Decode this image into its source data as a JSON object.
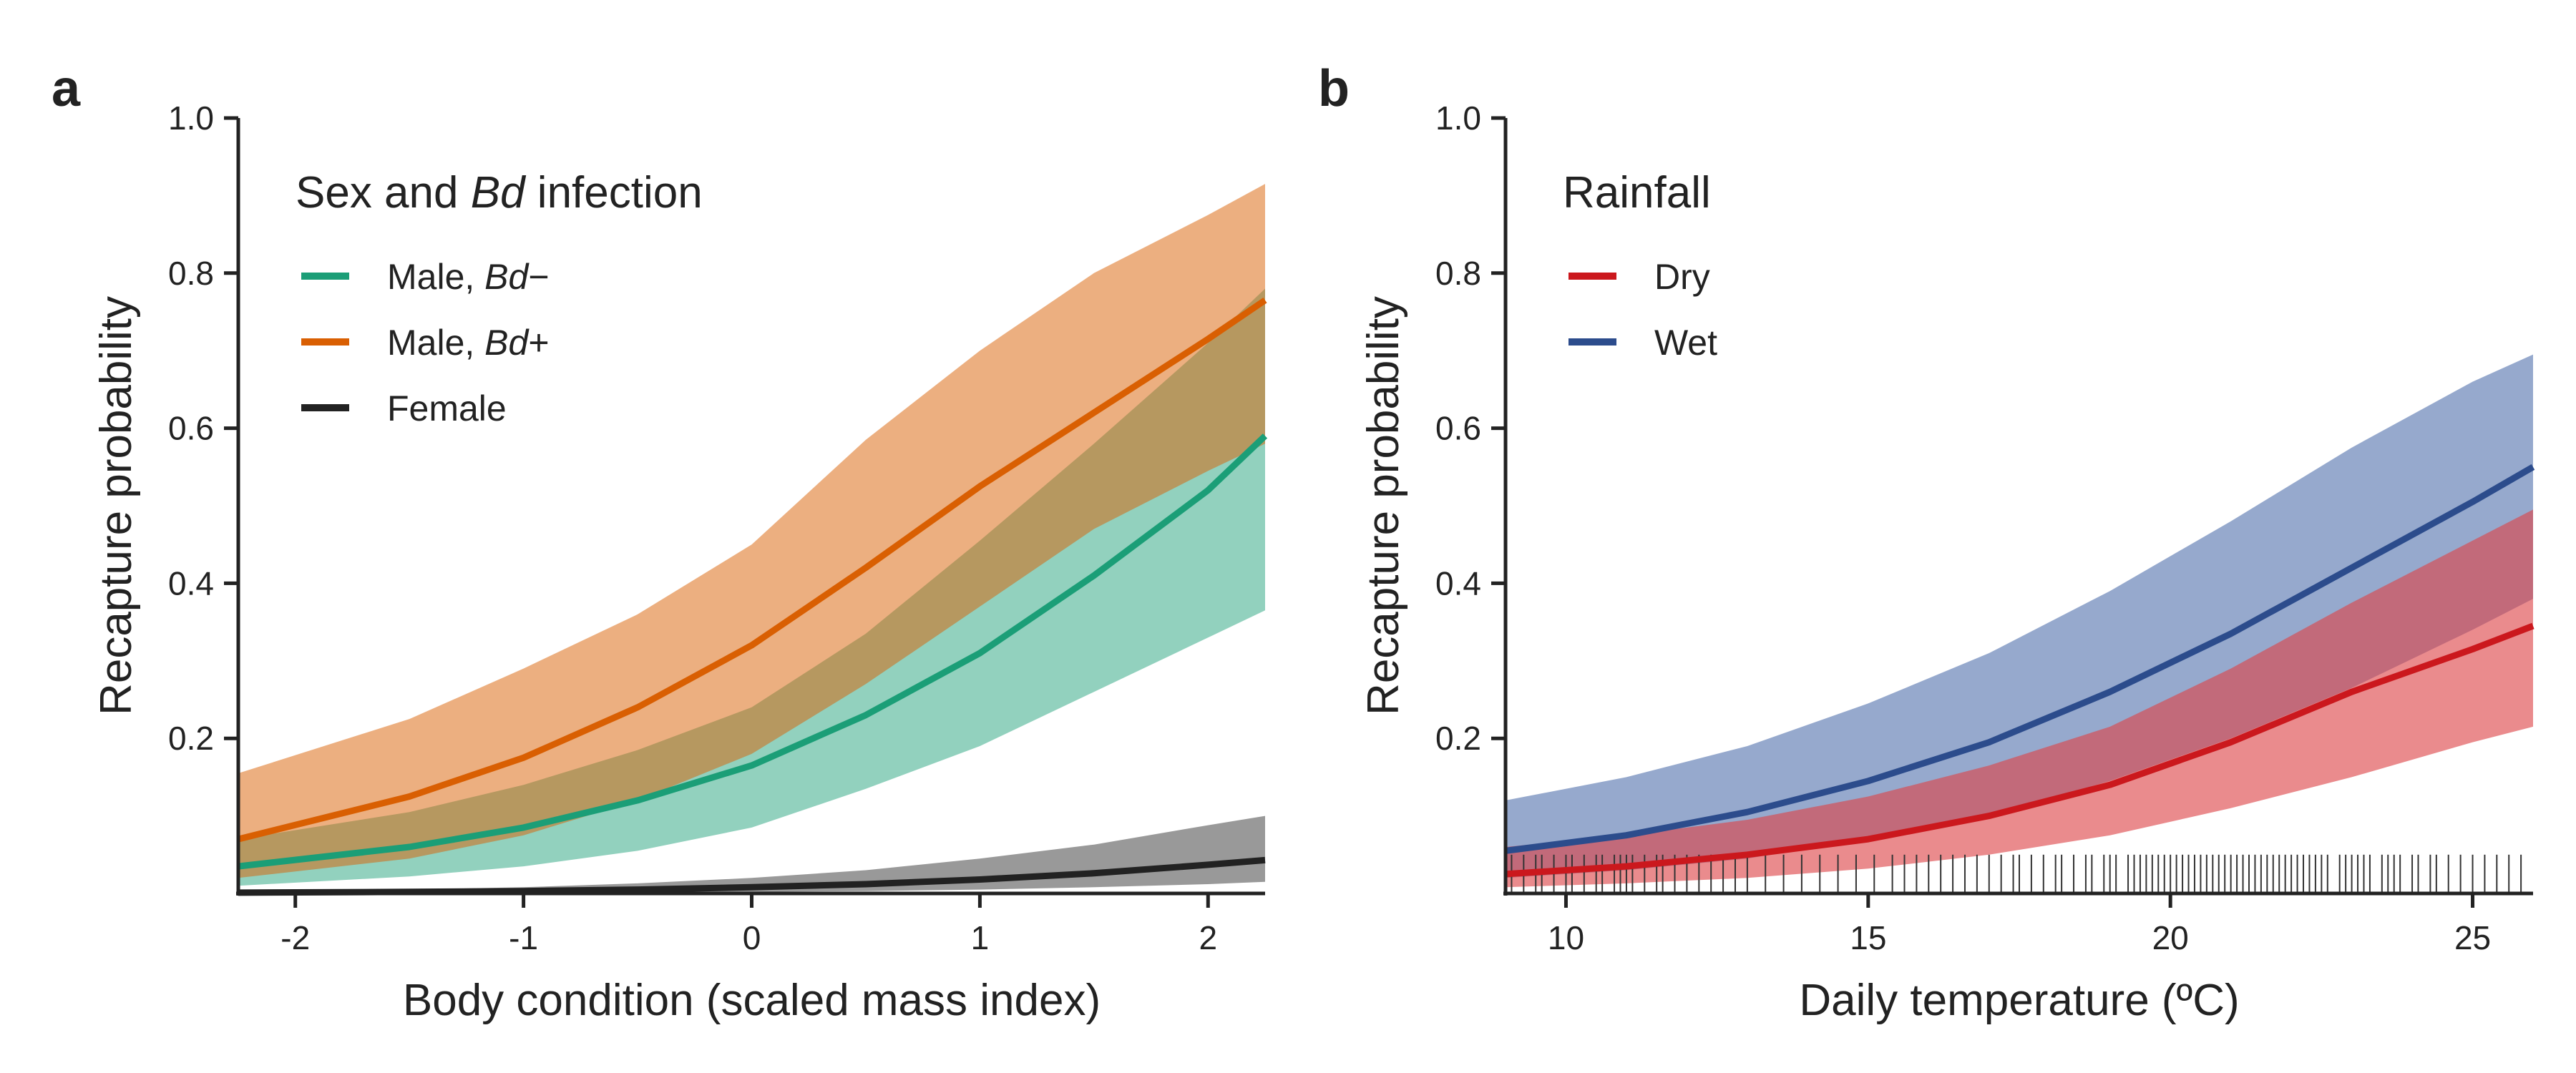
{
  "figure": {
    "panels": [
      {
        "letter": "a"
      },
      {
        "letter": "b"
      }
    ]
  },
  "chart_data": [
    {
      "type": "line",
      "panel": "a",
      "xlabel": "Body condition (scaled mass index)",
      "ylabel": "Recapture probability",
      "xlim": [
        -2.25,
        2.25
      ],
      "ylim": [
        0,
        1.0
      ],
      "xticks": [
        -2,
        -1,
        0,
        1,
        2
      ],
      "xtick_labels": [
        "-2",
        "-1",
        "0",
        "1",
        "2"
      ],
      "yticks": [
        0.2,
        0.4,
        0.6,
        0.8,
        1.0
      ],
      "ytick_labels": [
        "0.2",
        "0.4",
        "0.6",
        "0.8",
        "1.0"
      ],
      "grid": false,
      "legend": {
        "position": "top-left",
        "title_parts": [
          {
            "text": "Sex and ",
            "italic": false
          },
          {
            "text": "Bd",
            "italic": true
          },
          {
            "text": " infection",
            "italic": false
          }
        ],
        "entries": [
          {
            "parts": [
              {
                "text": "Male, ",
                "italic": false
              },
              {
                "text": "Bd",
                "italic": true
              },
              {
                "text": "−",
                "italic": false
              }
            ],
            "color": "#1b9e77"
          },
          {
            "parts": [
              {
                "text": "Male, ",
                "italic": false
              },
              {
                "text": "Bd",
                "italic": true
              },
              {
                "text": "+",
                "italic": false
              }
            ],
            "color": "#d95f02"
          },
          {
            "parts": [
              {
                "text": "Female",
                "italic": false
              }
            ],
            "color": "#222222"
          }
        ]
      },
      "series": [
        {
          "color": "#1b9e77",
          "band_color": "#1b9e77",
          "band_opacity": 0.48,
          "x": [
            -2.25,
            -1.5,
            -1.0,
            -0.5,
            0.0,
            0.5,
            1.0,
            1.5,
            2.0,
            2.25
          ],
          "y": [
            0.035,
            0.06,
            0.085,
            0.12,
            0.165,
            0.23,
            0.31,
            0.41,
            0.52,
            0.59
          ],
          "lower": [
            0.01,
            0.022,
            0.035,
            0.055,
            0.085,
            0.135,
            0.19,
            0.26,
            0.33,
            0.365
          ],
          "upper": [
            0.07,
            0.105,
            0.14,
            0.185,
            0.24,
            0.335,
            0.455,
            0.58,
            0.71,
            0.78
          ]
        },
        {
          "color": "#d95f02",
          "band_color": "#d95f02",
          "band_opacity": 0.5,
          "x": [
            -2.25,
            -1.5,
            -1.0,
            -0.5,
            0.0,
            0.5,
            1.0,
            1.5,
            2.0,
            2.25
          ],
          "y": [
            0.07,
            0.125,
            0.175,
            0.24,
            0.32,
            0.42,
            0.525,
            0.62,
            0.715,
            0.765
          ],
          "lower": [
            0.02,
            0.045,
            0.075,
            0.12,
            0.18,
            0.27,
            0.37,
            0.47,
            0.545,
            0.58
          ],
          "upper": [
            0.155,
            0.225,
            0.29,
            0.36,
            0.45,
            0.585,
            0.7,
            0.8,
            0.875,
            0.915
          ]
        },
        {
          "color": "#222222",
          "band_color": "#555555",
          "band_opacity": 0.6,
          "x": [
            -2.25,
            -1.5,
            -1.0,
            -0.5,
            0.0,
            0.5,
            1.0,
            1.5,
            2.0,
            2.25
          ],
          "y": [
            0.001,
            0.002,
            0.003,
            0.005,
            0.008,
            0.012,
            0.018,
            0.026,
            0.037,
            0.043
          ],
          "lower": [
            0.0,
            0.0,
            0.0005,
            0.001,
            0.002,
            0.003,
            0.005,
            0.008,
            0.012,
            0.015
          ],
          "upper": [
            0.003,
            0.005,
            0.008,
            0.013,
            0.02,
            0.03,
            0.045,
            0.063,
            0.088,
            0.1
          ]
        }
      ]
    },
    {
      "type": "line",
      "panel": "b",
      "xlabel": "Daily temperature (ºC)",
      "ylabel": "Recapture probability",
      "xlim": [
        9,
        26
      ],
      "ylim": [
        0,
        1.0
      ],
      "xticks": [
        10,
        15,
        20,
        25
      ],
      "xtick_labels": [
        "10",
        "15",
        "20",
        "25"
      ],
      "yticks": [
        0.2,
        0.4,
        0.6,
        0.8,
        1.0
      ],
      "ytick_labels": [
        "0.2",
        "0.4",
        "0.6",
        "0.8",
        "1.0"
      ],
      "grid": false,
      "legend": {
        "position": "top-left",
        "title_parts": [
          {
            "text": "Rainfall",
            "italic": false
          }
        ],
        "entries": [
          {
            "parts": [
              {
                "text": "Dry",
                "italic": false
              }
            ],
            "color": "#cb181d"
          },
          {
            "parts": [
              {
                "text": "Wet",
                "italic": false
              }
            ],
            "color": "#2c4c8c"
          }
        ]
      },
      "series": [
        {
          "color": "#2c4c8c",
          "band_color": "#4a6aa8",
          "band_opacity": 0.58,
          "x": [
            9,
            11,
            13,
            15,
            17,
            19,
            21,
            23,
            25,
            26
          ],
          "y": [
            0.055,
            0.075,
            0.105,
            0.145,
            0.195,
            0.26,
            0.335,
            0.42,
            0.505,
            0.55
          ],
          "lower": [
            0.02,
            0.03,
            0.045,
            0.07,
            0.1,
            0.145,
            0.2,
            0.265,
            0.34,
            0.38
          ],
          "upper": [
            0.12,
            0.15,
            0.19,
            0.245,
            0.31,
            0.39,
            0.48,
            0.575,
            0.66,
            0.695
          ]
        },
        {
          "color": "#cb181d",
          "band_color": "#dd4347",
          "band_opacity": 0.62,
          "x": [
            9,
            11,
            13,
            15,
            17,
            19,
            21,
            23,
            25,
            26
          ],
          "y": [
            0.025,
            0.035,
            0.05,
            0.07,
            0.1,
            0.14,
            0.195,
            0.26,
            0.315,
            0.345
          ],
          "lower": [
            0.008,
            0.013,
            0.02,
            0.032,
            0.05,
            0.075,
            0.11,
            0.15,
            0.195,
            0.215
          ],
          "upper": [
            0.06,
            0.075,
            0.095,
            0.125,
            0.165,
            0.215,
            0.29,
            0.375,
            0.455,
            0.495
          ]
        }
      ],
      "rug": {
        "height": 0.05,
        "values": [
          9.1,
          9.3,
          9.5,
          9.6,
          9.8,
          10.0,
          10.1,
          10.3,
          10.5,
          10.6,
          10.8,
          10.9,
          11.0,
          11.1,
          11.3,
          11.5,
          11.6,
          11.8,
          12.0,
          12.2,
          12.4,
          12.6,
          12.8,
          13.0,
          13.3,
          13.6,
          13.9,
          14.2,
          14.5,
          14.8,
          15.1,
          15.4,
          15.6,
          15.8,
          16.0,
          16.2,
          16.4,
          16.6,
          16.8,
          17.0,
          17.2,
          17.4,
          17.5,
          17.7,
          17.9,
          18.1,
          18.2,
          18.4,
          18.6,
          18.7,
          18.9,
          19.0,
          19.1,
          19.3,
          19.4,
          19.5,
          19.6,
          19.7,
          19.8,
          19.9,
          20.0,
          20.1,
          20.2,
          20.3,
          20.4,
          20.5,
          20.6,
          20.7,
          20.8,
          20.9,
          21.0,
          21.1,
          21.2,
          21.3,
          21.4,
          21.5,
          21.6,
          21.7,
          21.8,
          21.9,
          22.0,
          22.1,
          22.2,
          22.3,
          22.4,
          22.5,
          22.6,
          22.8,
          22.9,
          23.0,
          23.1,
          23.2,
          23.3,
          23.5,
          23.6,
          23.7,
          23.8,
          24.0,
          24.1,
          24.3,
          24.4,
          24.6,
          24.8,
          25.0,
          25.2,
          25.4,
          25.6,
          25.8
        ]
      }
    }
  ]
}
